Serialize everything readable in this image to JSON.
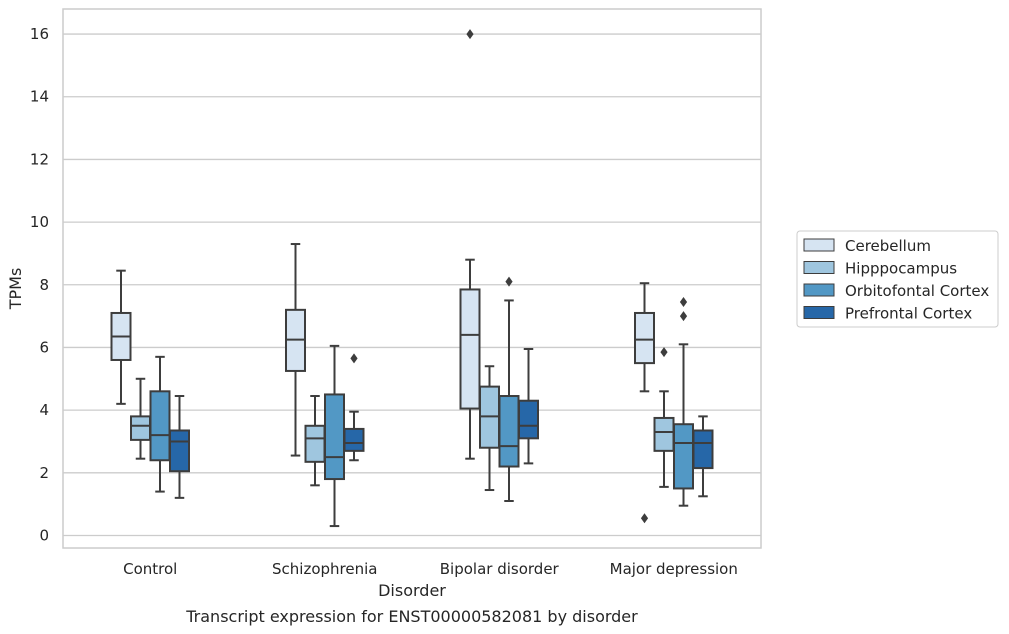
{
  "chart_data": {
    "type": "boxplot",
    "title": "",
    "caption": "Transcript expression for ENST00000582081 by disorder",
    "xlabel": "Disorder",
    "ylabel": "TPMs",
    "ylim": [
      -0.4,
      16.8
    ],
    "yticks": [
      0,
      2,
      4,
      6,
      8,
      10,
      12,
      14,
      16
    ],
    "grid": "horizontal",
    "legend_position": "right",
    "categories": [
      "Control",
      "Schizophrenia",
      "Bipolar disorder",
      "Major depression"
    ],
    "series": [
      {
        "name": "Cerebellum",
        "color": "#d6e4f2",
        "boxes": [
          {
            "whislo": 4.2,
            "q1": 5.6,
            "med": 6.35,
            "q3": 7.1,
            "whishi": 8.45,
            "fliers": []
          },
          {
            "whislo": 2.55,
            "q1": 5.25,
            "med": 6.25,
            "q3": 7.2,
            "whishi": 9.3,
            "fliers": []
          },
          {
            "whislo": 2.45,
            "q1": 4.05,
            "med": 6.4,
            "q3": 7.85,
            "whishi": 8.8,
            "fliers": [
              16.0
            ]
          },
          {
            "whislo": 4.6,
            "q1": 5.5,
            "med": 6.25,
            "q3": 7.1,
            "whishi": 8.05,
            "fliers": [
              0.55
            ]
          }
        ]
      },
      {
        "name": "Hipppocampus",
        "color": "#9fc6df",
        "boxes": [
          {
            "whislo": 2.45,
            "q1": 3.05,
            "med": 3.5,
            "q3": 3.8,
            "whishi": 5.0,
            "fliers": []
          },
          {
            "whislo": 1.6,
            "q1": 2.35,
            "med": 3.1,
            "q3": 3.5,
            "whishi": 4.45,
            "fliers": []
          },
          {
            "whislo": 1.45,
            "q1": 2.8,
            "med": 3.8,
            "q3": 4.75,
            "whishi": 5.4,
            "fliers": []
          },
          {
            "whislo": 1.55,
            "q1": 2.7,
            "med": 3.3,
            "q3": 3.75,
            "whishi": 4.6,
            "fliers": [
              5.85
            ]
          }
        ]
      },
      {
        "name": "Orbitofontal Cortex",
        "color": "#5298c5",
        "boxes": [
          {
            "whislo": 1.4,
            "q1": 2.4,
            "med": 3.2,
            "q3": 4.6,
            "whishi": 5.7,
            "fliers": []
          },
          {
            "whislo": 0.3,
            "q1": 1.8,
            "med": 2.5,
            "q3": 4.5,
            "whishi": 6.05,
            "fliers": []
          },
          {
            "whislo": 1.1,
            "q1": 2.2,
            "med": 2.85,
            "q3": 4.45,
            "whishi": 7.5,
            "fliers": [
              8.1
            ]
          },
          {
            "whislo": 0.95,
            "q1": 1.5,
            "med": 2.95,
            "q3": 3.55,
            "whishi": 6.1,
            "fliers": [
              7.0,
              7.45
            ]
          }
        ]
      },
      {
        "name": "Prefrontal Cortex",
        "color": "#2667a8",
        "boxes": [
          {
            "whislo": 1.2,
            "q1": 2.05,
            "med": 3.0,
            "q3": 3.35,
            "whishi": 4.45,
            "fliers": []
          },
          {
            "whislo": 2.4,
            "q1": 2.7,
            "med": 2.95,
            "q3": 3.4,
            "whishi": 3.95,
            "fliers": [
              5.65
            ]
          },
          {
            "whislo": 2.3,
            "q1": 3.1,
            "med": 3.5,
            "q3": 4.3,
            "whishi": 5.95,
            "fliers": []
          },
          {
            "whislo": 1.25,
            "q1": 2.15,
            "med": 2.95,
            "q3": 3.35,
            "whishi": 3.8,
            "fliers": []
          }
        ]
      }
    ]
  }
}
